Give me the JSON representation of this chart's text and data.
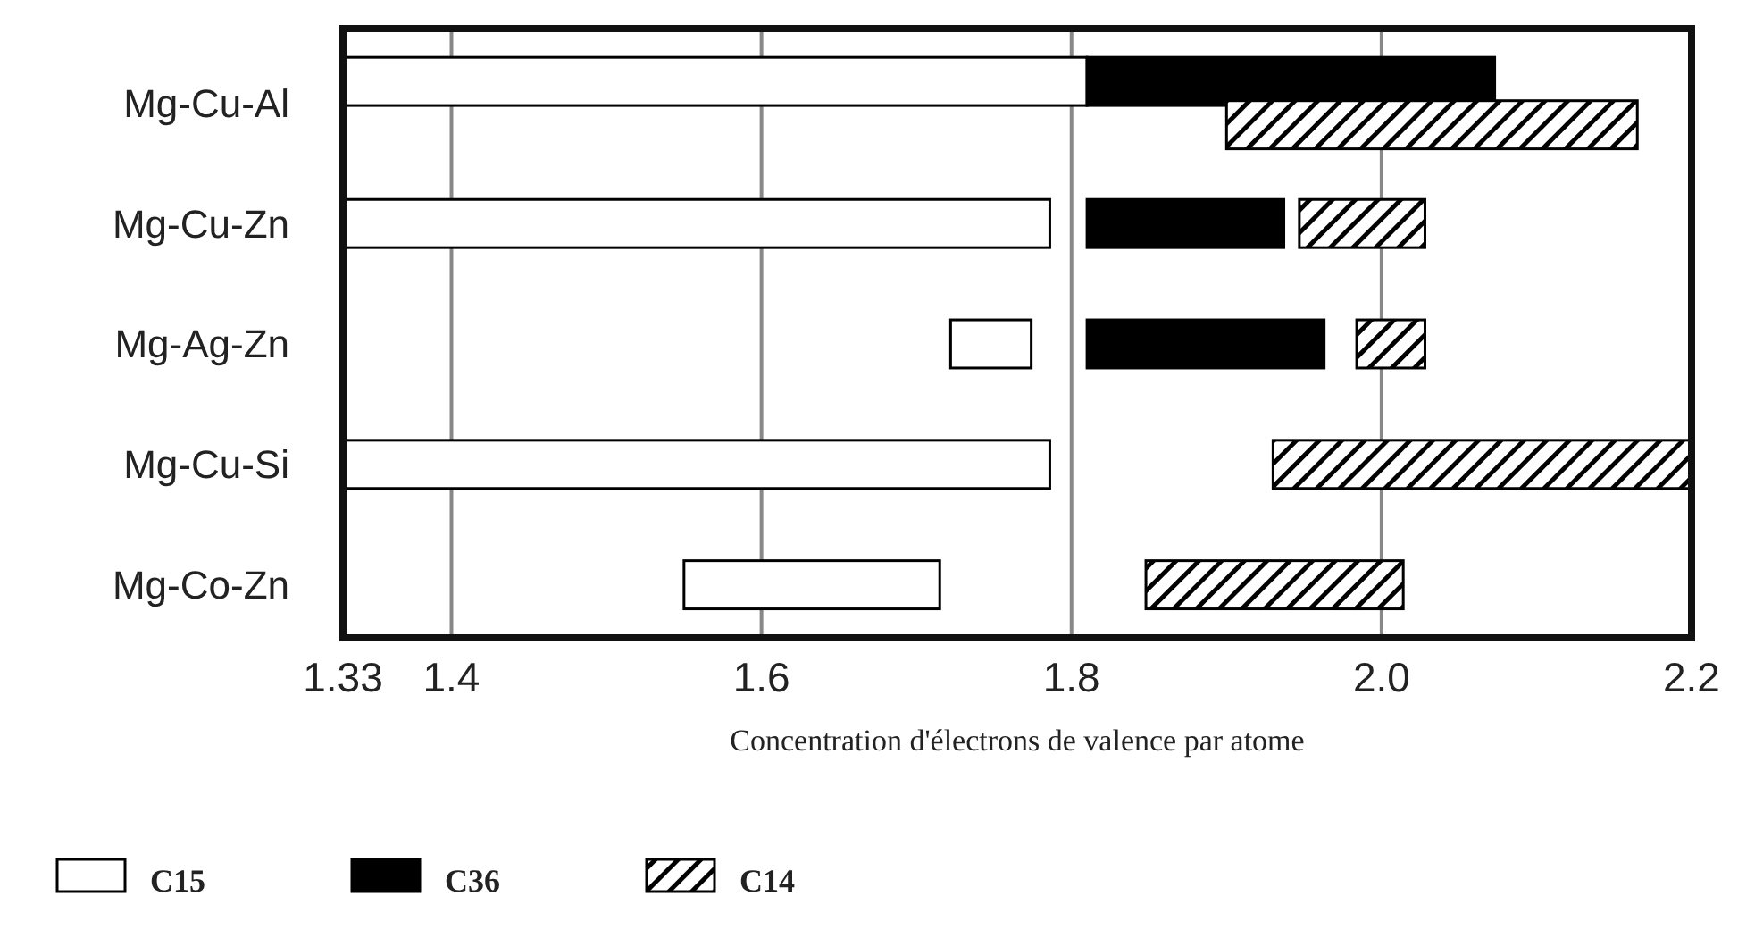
{
  "chart_data": {
    "type": "bar",
    "orientation": "horizontal",
    "xlabel": "Concentration d'électrons de valence par atome",
    "categories": [
      "Mg-Cu-Al",
      "Mg-Cu-Zn",
      "Mg-Ag-Zn",
      "Mg-Cu-Si",
      "Mg-Co-Zn"
    ],
    "series": [
      {
        "name": "C15",
        "color": "#ffffff",
        "base": [
          1.33,
          1.33,
          1.722,
          1.33,
          1.55
        ],
        "values": [
          0.48,
          0.456,
          0.052,
          0.456,
          0.165
        ]
      },
      {
        "name": "C36",
        "color": "#000000",
        "base": [
          1.81,
          1.81,
          1.81,
          null,
          null
        ],
        "values": [
          0.263,
          0.127,
          0.153,
          null,
          null
        ]
      },
      {
        "name": "C14",
        "color": "#000000",
        "base": [
          1.9,
          1.947,
          1.984,
          1.93,
          1.848
        ],
        "values": [
          0.265,
          0.081,
          0.044,
          0.27,
          0.166
        ]
      }
    ],
    "xlim": [
      1.33,
      2.2
    ],
    "xticks": [
      1.33,
      1.4,
      1.6,
      1.8,
      {
        "value": 2.0,
        "label": "2.0"
      },
      2.2
    ],
    "grid": "x",
    "legend": "bottom left"
  }
}
